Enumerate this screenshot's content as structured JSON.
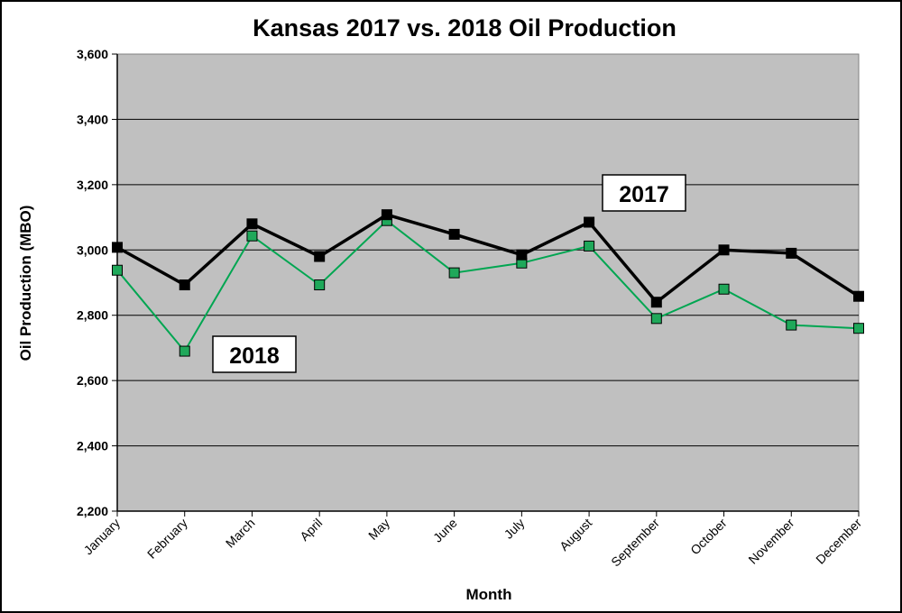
{
  "chart_data": {
    "type": "line",
    "title": "Kansas 2017 vs. 2018 Oil Production",
    "xlabel": "Month",
    "ylabel": "Oil Production (MBO)",
    "ylim": [
      2200,
      3600
    ],
    "ytick_step": 200,
    "ytick_labels": [
      "2,200",
      "2,400",
      "2,600",
      "2,800",
      "3,000",
      "3,200",
      "3,400",
      "3,600"
    ],
    "grid": true,
    "legend": "none",
    "categories": [
      "January",
      "February",
      "March",
      "April",
      "May",
      "June",
      "July",
      "August",
      "September",
      "October",
      "November",
      "December"
    ],
    "series": [
      {
        "name": "2017",
        "color": "#000000",
        "marker_fill": "#000000",
        "values": [
          3008,
          2893,
          3080,
          2980,
          3108,
          3048,
          2985,
          3085,
          2840,
          3000,
          2990,
          2858
        ]
      },
      {
        "name": "2018",
        "color": "#00a651",
        "marker_fill": "#1fa85a",
        "values": [
          2938,
          2690,
          3043,
          2893,
          3090,
          2930,
          2960,
          3012,
          2790,
          2880,
          2770,
          2760
        ]
      }
    ],
    "plot_background": "#c0c0c0"
  }
}
